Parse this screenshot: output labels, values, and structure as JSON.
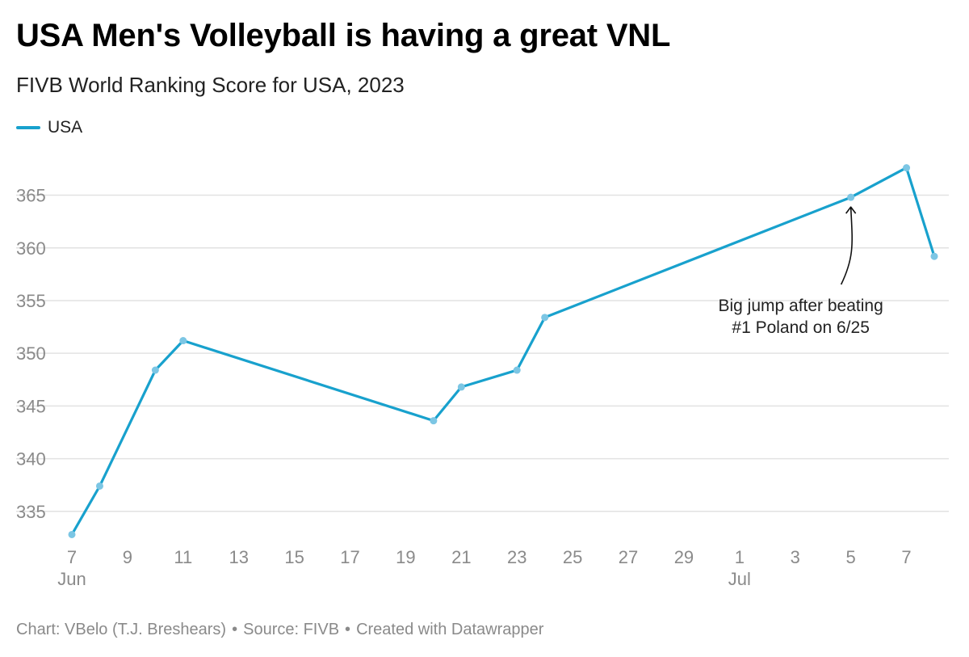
{
  "page": {
    "title": "USA Men's Volleyball is having a great VNL",
    "subtitle": "FIVB World Ranking Score for USA, 2023",
    "legend": [
      {
        "label": "USA",
        "color": "#18a1cd"
      }
    ],
    "footer": {
      "chart_by": "Chart: VBelo (T.J. Breshears)",
      "source": "Source: FIVB",
      "created_with": "Created with Datawrapper",
      "separator": "•"
    }
  },
  "chart_data": {
    "type": "line",
    "title": "USA Men's Volleyball is having a great VNL",
    "subtitle": "FIVB World Ranking Score for USA, 2023",
    "xlabel": "",
    "ylabel": "",
    "series": [
      {
        "name": "USA",
        "color": "#18a1cd",
        "points": [
          {
            "x": "2023-06-07",
            "y": 332.8
          },
          {
            "x": "2023-06-08",
            "y": 337.4
          },
          {
            "x": "2023-06-10",
            "y": 348.4
          },
          {
            "x": "2023-06-11",
            "y": 351.2
          },
          {
            "x": "2023-06-20",
            "y": 343.6
          },
          {
            "x": "2023-06-21",
            "y": 346.8
          },
          {
            "x": "2023-06-23",
            "y": 348.4
          },
          {
            "x": "2023-06-24",
            "y": 353.4
          },
          {
            "x": "2023-07-05",
            "y": 364.8
          },
          {
            "x": "2023-07-07",
            "y": 367.6
          },
          {
            "x": "2023-07-08",
            "y": 359.2
          }
        ]
      }
    ],
    "y_ticks": [
      335,
      340,
      345,
      350,
      355,
      360,
      365
    ],
    "ylim": [
      332.3,
      368.8
    ],
    "x_ticks": [
      {
        "date": "2023-06-07",
        "label": "7",
        "month": "Jun"
      },
      {
        "date": "2023-06-09",
        "label": "9"
      },
      {
        "date": "2023-06-11",
        "label": "11"
      },
      {
        "date": "2023-06-13",
        "label": "13"
      },
      {
        "date": "2023-06-15",
        "label": "15"
      },
      {
        "date": "2023-06-17",
        "label": "17"
      },
      {
        "date": "2023-06-19",
        "label": "19"
      },
      {
        "date": "2023-06-21",
        "label": "21"
      },
      {
        "date": "2023-06-23",
        "label": "23"
      },
      {
        "date": "2023-06-25",
        "label": "25"
      },
      {
        "date": "2023-06-27",
        "label": "27"
      },
      {
        "date": "2023-06-29",
        "label": "29"
      },
      {
        "date": "2023-07-01",
        "label": "1",
        "month": "Jul"
      },
      {
        "date": "2023-07-03",
        "label": "3"
      },
      {
        "date": "2023-07-05",
        "label": "5"
      },
      {
        "date": "2023-07-07",
        "label": "7"
      }
    ],
    "xlim": [
      "2023-06-07",
      "2023-07-08"
    ],
    "grid": "horizontal",
    "legend_position": "top-left",
    "annotations": [
      {
        "lines": [
          "Big jump after beating",
          "#1 Poland on 6/25"
        ],
        "target": {
          "x": "2023-07-05",
          "y": 364.8
        }
      }
    ]
  }
}
